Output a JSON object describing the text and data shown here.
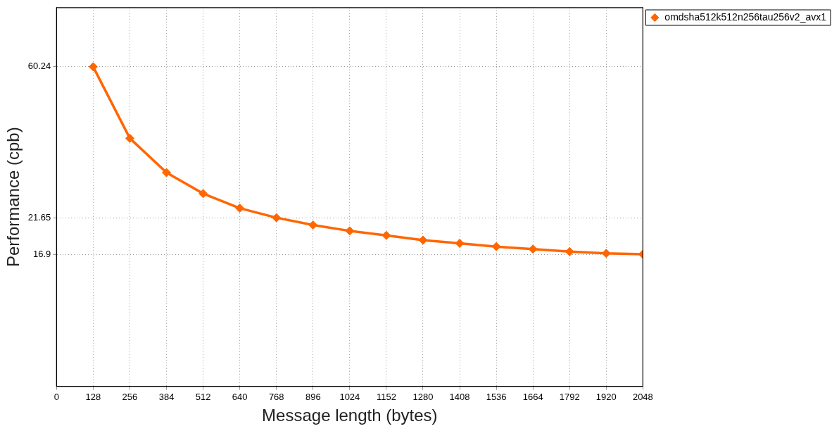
{
  "chart_data": {
    "type": "line",
    "xlabel": "Message length (bytes)",
    "ylabel": "Performance (cpb)",
    "x": [
      128,
      256,
      384,
      512,
      640,
      768,
      896,
      1024,
      1152,
      1280,
      1408,
      1536,
      1664,
      1792,
      1920,
      2048
    ],
    "series": [
      {
        "name": "omdsha512k512n256tau256v2_avx1",
        "color": "#ff6600",
        "values": [
          60.24,
          37.1,
          29.4,
          25.5,
          23.1,
          21.65,
          20.6,
          19.8,
          19.2,
          18.6,
          18.2,
          17.8,
          17.5,
          17.2,
          17.0,
          16.9
        ]
      }
    ],
    "xlim": [
      0,
      2048
    ],
    "xticks": [
      0,
      128,
      256,
      384,
      512,
      640,
      768,
      896,
      1024,
      1152,
      1280,
      1408,
      1536,
      1664,
      1792,
      1920,
      2048
    ],
    "ylim": [
      6.9,
      90
    ],
    "yticks": [
      16.9,
      21.65,
      60.24
    ],
    "log": "y",
    "grid": true,
    "legend": "top right",
    "marker": "diamond",
    "line_style": "solid"
  }
}
